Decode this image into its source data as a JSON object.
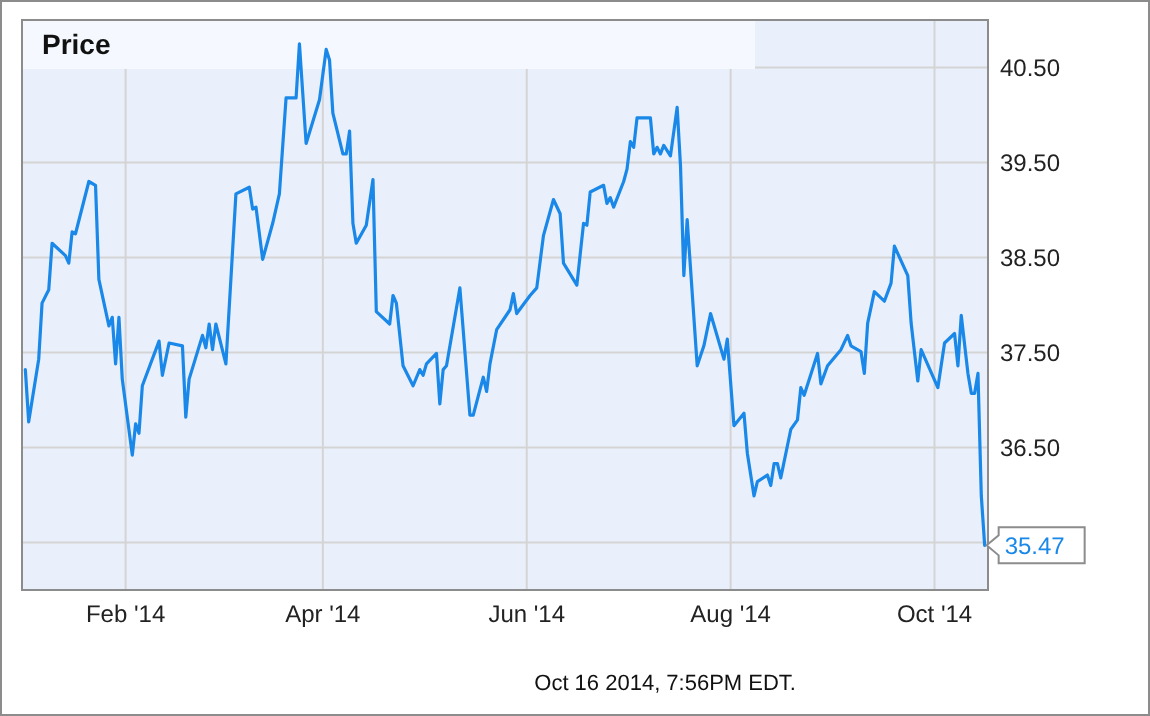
{
  "chart_data": {
    "type": "line",
    "title": "Price",
    "series": [
      {
        "color": "#1a88e8",
        "x": [
          "2014-01-02",
          "2014-01-03",
          "2014-01-06",
          "2014-01-07",
          "2014-01-09",
          "2014-01-10",
          "2014-01-14",
          "2014-01-15",
          "2014-01-16",
          "2014-01-17",
          "2014-01-21",
          "2014-01-23",
          "2014-01-24",
          "2014-01-27",
          "2014-01-28",
          "2014-01-29",
          "2014-01-30",
          "2014-01-31",
          "2014-02-03",
          "2014-02-04",
          "2014-02-05",
          "2014-02-06",
          "2014-02-11",
          "2014-02-12",
          "2014-02-14",
          "2014-02-18",
          "2014-02-19",
          "2014-02-20",
          "2014-02-24",
          "2014-02-25",
          "2014-02-26",
          "2014-02-27",
          "2014-02-28",
          "2014-03-03",
          "2014-03-06",
          "2014-03-10",
          "2014-03-11",
          "2014-03-12",
          "2014-03-14",
          "2014-03-17",
          "2014-03-19",
          "2014-03-21",
          "2014-03-24",
          "2014-03-25",
          "2014-03-27",
          "2014-03-31",
          "2014-04-02",
          "2014-04-03",
          "2014-04-04",
          "2014-04-07",
          "2014-04-08",
          "2014-04-09",
          "2014-04-10",
          "2014-04-11",
          "2014-04-14",
          "2014-04-16",
          "2014-04-17",
          "2014-04-21",
          "2014-04-22",
          "2014-04-23",
          "2014-04-25",
          "2014-04-28",
          "2014-04-30",
          "2014-05-01",
          "2014-05-02",
          "2014-05-05",
          "2014-05-06",
          "2014-05-07",
          "2014-05-08",
          "2014-05-12",
          "2014-05-15",
          "2014-05-16",
          "2014-05-19",
          "2014-05-20",
          "2014-05-21",
          "2014-05-23",
          "2014-05-27",
          "2014-05-28",
          "2014-05-29",
          "2014-06-02",
          "2014-06-04",
          "2014-06-06",
          "2014-06-09",
          "2014-06-11",
          "2014-06-12",
          "2014-06-16",
          "2014-06-18",
          "2014-06-19",
          "2014-06-20",
          "2014-06-24",
          "2014-06-25",
          "2014-06-26",
          "2014-06-27",
          "2014-06-30",
          "2014-07-01",
          "2014-07-02",
          "2014-07-03",
          "2014-07-04",
          "2014-07-08",
          "2014-07-09",
          "2014-07-10",
          "2014-07-11",
          "2014-07-12",
          "2014-07-14",
          "2014-07-16",
          "2014-07-17",
          "2014-07-18",
          "2014-07-19",
          "2014-07-22",
          "2014-07-24",
          "2014-07-26",
          "2014-07-30",
          "2014-07-31",
          "2014-08-02",
          "2014-08-05",
          "2014-08-06",
          "2014-08-08",
          "2014-08-09",
          "2014-08-12",
          "2014-08-13",
          "2014-08-14",
          "2014-08-15",
          "2014-08-16",
          "2014-08-19",
          "2014-08-21",
          "2014-08-22",
          "2014-08-23",
          "2014-08-27",
          "2014-08-28",
          "2014-08-30",
          "2014-09-03",
          "2014-09-05",
          "2014-09-06",
          "2014-09-09",
          "2014-09-10",
          "2014-09-11",
          "2014-09-13",
          "2014-09-16",
          "2014-09-18",
          "2014-09-19",
          "2014-09-23",
          "2014-09-24",
          "2014-09-26",
          "2014-09-27",
          "2014-10-02",
          "2014-10-04",
          "2014-10-07",
          "2014-10-08",
          "2014-10-09",
          "2014-10-11",
          "2014-10-12",
          "2014-10-13",
          "2014-10-14",
          "2014-10-15",
          "2014-10-16"
        ],
        "values": [
          37.32,
          36.77,
          37.43,
          38.02,
          38.16,
          38.65,
          38.52,
          38.44,
          38.77,
          38.75,
          39.3,
          39.26,
          38.27,
          37.78,
          37.87,
          37.38,
          37.87,
          37.22,
          36.42,
          36.75,
          36.65,
          37.15,
          37.62,
          37.26,
          37.6,
          37.57,
          36.82,
          37.22,
          37.68,
          37.55,
          37.8,
          37.53,
          37.8,
          37.38,
          39.17,
          39.24,
          39.01,
          39.03,
          38.48,
          38.86,
          39.17,
          40.18,
          40.18,
          40.75,
          39.7,
          40.16,
          40.69,
          40.58,
          40.02,
          39.59,
          39.59,
          39.83,
          38.86,
          38.65,
          38.84,
          39.32,
          37.93,
          37.8,
          38.1,
          38.02,
          37.36,
          37.15,
          37.32,
          37.26,
          37.38,
          37.49,
          36.96,
          37.32,
          37.36,
          38.18,
          36.84,
          36.84,
          37.24,
          37.09,
          37.38,
          37.74,
          37.95,
          38.12,
          37.91,
          38.1,
          38.18,
          38.73,
          39.11,
          38.96,
          38.44,
          38.21,
          38.86,
          38.84,
          39.19,
          39.26,
          39.07,
          39.13,
          39.03,
          39.3,
          39.43,
          39.72,
          39.66,
          39.97,
          39.97,
          39.59,
          39.66,
          39.59,
          39.68,
          39.57,
          40.08,
          39.47,
          38.31,
          38.9,
          37.36,
          37.57,
          37.91,
          37.43,
          37.64,
          36.73,
          36.86,
          36.44,
          35.99,
          36.14,
          36.21,
          36.1,
          36.33,
          36.33,
          36.18,
          36.69,
          36.79,
          37.13,
          37.05,
          37.49,
          37.17,
          37.36,
          37.53,
          37.68,
          37.57,
          37.51,
          37.28,
          37.81,
          38.14,
          38.04,
          38.23,
          38.62,
          38.31,
          37.81,
          37.2,
          37.53,
          37.13,
          37.6,
          37.7,
          37.36,
          37.89,
          37.28,
          37.07,
          37.07,
          37.28,
          35.99,
          35.47
        ]
      }
    ],
    "xlim": [
      "2014-01-01",
      "2014-10-17"
    ],
    "xticks": [
      {
        "value": "2014-02-01",
        "label": "Feb '14"
      },
      {
        "value": "2014-04-01",
        "label": "Apr '14"
      },
      {
        "value": "2014-06-01",
        "label": "Jun '14"
      },
      {
        "value": "2014-08-01",
        "label": "Aug '14"
      },
      {
        "value": "2014-10-01",
        "label": "Oct '14"
      }
    ],
    "ylim": [
      35.0,
      41.0
    ],
    "yticks": [
      {
        "value": 35.5,
        "label": null
      },
      {
        "value": 36.5,
        "label": "36.50"
      },
      {
        "value": 37.5,
        "label": "37.50"
      },
      {
        "value": 38.5,
        "label": "38.50"
      },
      {
        "value": 39.5,
        "label": "39.50"
      },
      {
        "value": 40.5,
        "label": "40.50"
      }
    ],
    "grid": true,
    "marker": "none",
    "line_style": "solid",
    "annotations": [
      {
        "text": "35.47",
        "x": "2014-10-16",
        "y": 35.47
      },
      "Oct 16 2014, 7:56PM EDT."
    ]
  }
}
